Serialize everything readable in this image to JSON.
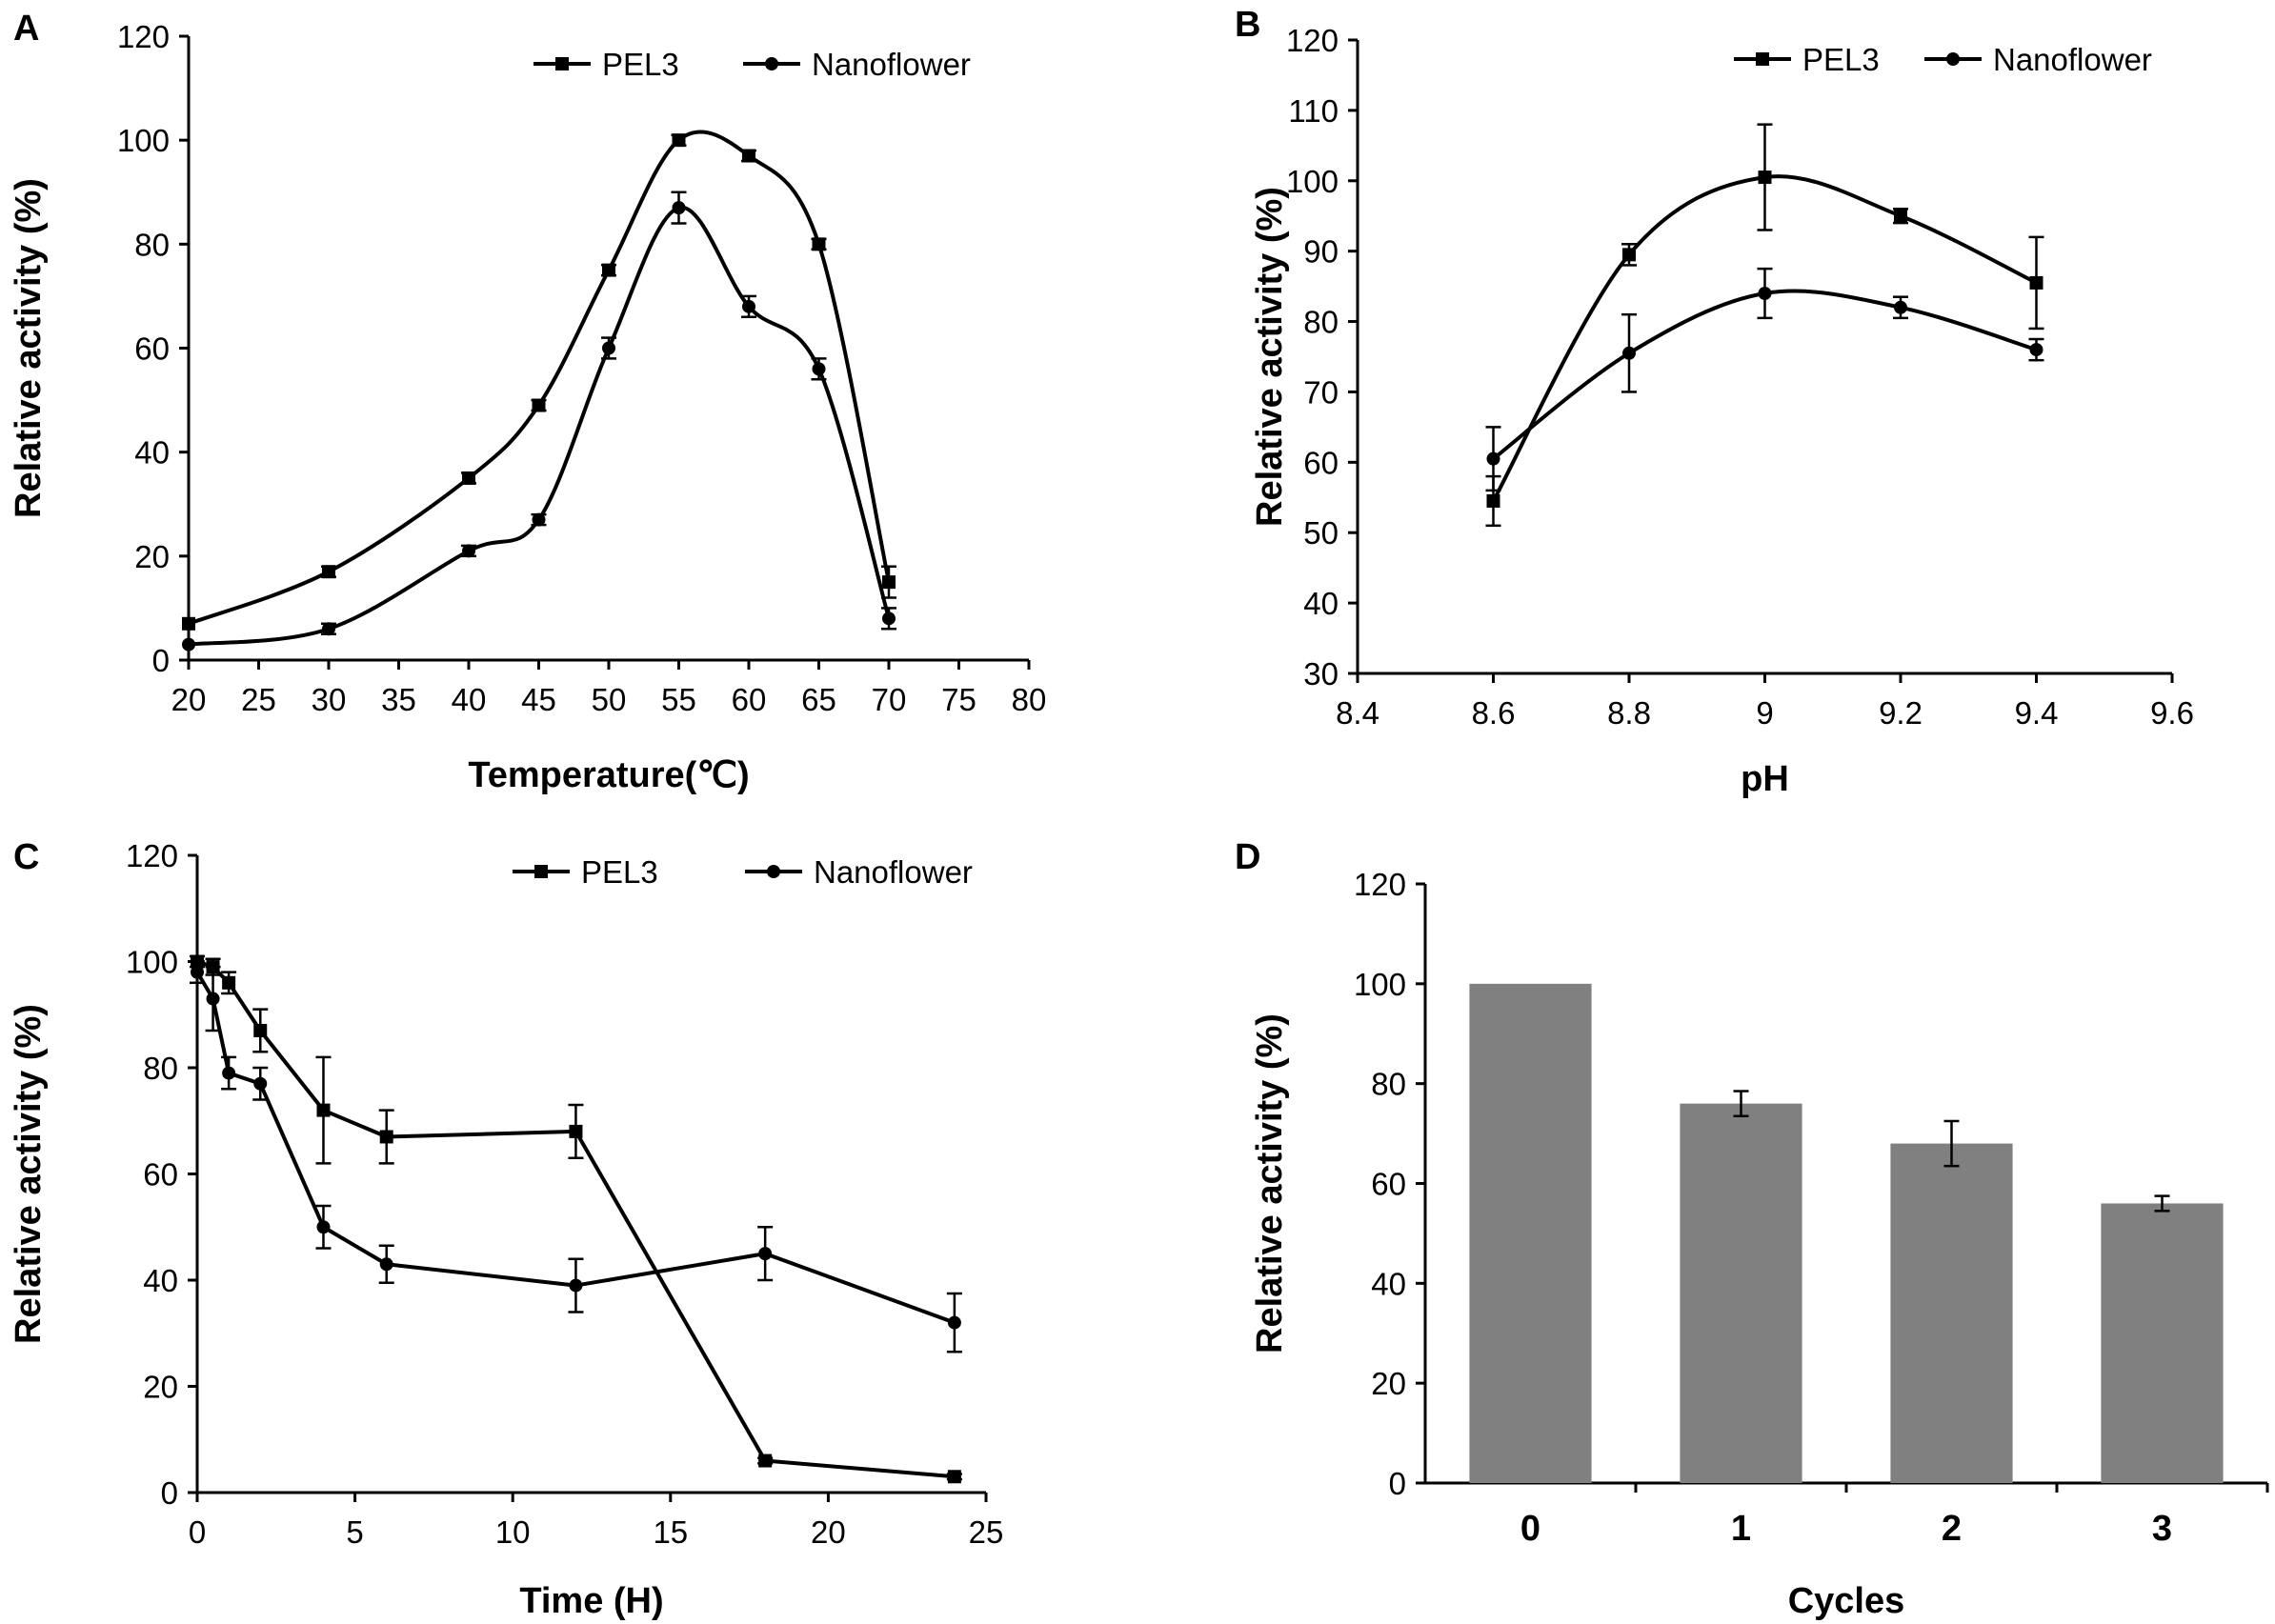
{
  "colors": {
    "ink": "#000000",
    "bar": "#808080",
    "background": "#ffffff"
  },
  "chart_data": [
    {
      "panel": "A",
      "type": "line",
      "xlabel": "Temperature(℃)",
      "ylabel": "Relative activity (%)",
      "xlim": [
        20,
        80
      ],
      "ylim": [
        0,
        120
      ],
      "xticks": [
        "20",
        "25",
        "30",
        "35",
        "40",
        "45",
        "50",
        "55",
        "60",
        "65",
        "70",
        "75",
        "80"
      ],
      "yticks": [
        "0",
        "20",
        "40",
        "60",
        "80",
        "100",
        "120"
      ],
      "x_tick_values": [
        20,
        25,
        30,
        35,
        40,
        45,
        50,
        55,
        60,
        65,
        70,
        75,
        80
      ],
      "y_tick_values": [
        0,
        20,
        40,
        60,
        80,
        100,
        120
      ],
      "legend": "top-right",
      "smooth": true,
      "series": [
        {
          "name": "PEL3",
          "marker": "square",
          "x": [
            20,
            30,
            40,
            45,
            50,
            55,
            60,
            65,
            70
          ],
          "values": [
            7,
            17,
            35,
            49,
            75,
            100,
            97,
            80,
            15
          ],
          "err": [
            0,
            1,
            1,
            1,
            1,
            1,
            1,
            1,
            3
          ]
        },
        {
          "name": "Nanoflower",
          "marker": "circle",
          "x": [
            20,
            30,
            40,
            45,
            50,
            55,
            60,
            65,
            70
          ],
          "values": [
            3,
            6,
            21,
            27,
            60,
            87,
            68,
            56,
            8
          ],
          "err": [
            0,
            1,
            1,
            1,
            2,
            3,
            2,
            2,
            2
          ]
        }
      ]
    },
    {
      "panel": "B",
      "type": "line",
      "xlabel": "pH",
      "ylabel": "Relative activity (%)",
      "xlim": [
        8.4,
        9.6
      ],
      "ylim": [
        30,
        120
      ],
      "xticks": [
        "8.4",
        "8.6",
        "8.8",
        "9",
        "9.2",
        "9.4",
        "9.6"
      ],
      "yticks": [
        "30",
        "40",
        "50",
        "60",
        "70",
        "80",
        "90",
        "100",
        "110",
        "120"
      ],
      "x_tick_values": [
        8.4,
        8.6,
        8.8,
        9.0,
        9.2,
        9.4,
        9.6
      ],
      "y_tick_values": [
        30,
        40,
        50,
        60,
        70,
        80,
        90,
        100,
        110,
        120
      ],
      "legend": "top-right",
      "smooth": true,
      "series": [
        {
          "name": "PEL3",
          "marker": "square",
          "x": [
            8.6,
            8.8,
            9.0,
            9.2,
            9.4
          ],
          "values": [
            54.5,
            89.5,
            100.5,
            95,
            85.5
          ],
          "err": [
            3.5,
            1.5,
            7.5,
            1,
            6.5
          ]
        },
        {
          "name": "Nanoflower",
          "marker": "circle",
          "x": [
            8.6,
            8.8,
            9.0,
            9.2,
            9.4
          ],
          "values": [
            60.5,
            75.5,
            84,
            82,
            76
          ],
          "err": [
            4.5,
            5.5,
            3.5,
            1.5,
            1.5
          ]
        }
      ]
    },
    {
      "panel": "C",
      "type": "line",
      "xlabel": "Time (H)",
      "ylabel": "Relative activity (%)",
      "xlim": [
        0,
        25
      ],
      "ylim": [
        0,
        120
      ],
      "xticks": [
        "0",
        "5",
        "10",
        "15",
        "20",
        "25"
      ],
      "yticks": [
        "0",
        "20",
        "40",
        "60",
        "80",
        "100",
        "120"
      ],
      "x_tick_values": [
        0,
        5,
        10,
        15,
        20,
        25
      ],
      "y_tick_values": [
        0,
        20,
        40,
        60,
        80,
        100,
        120
      ],
      "legend": "top-right",
      "smooth": false,
      "series": [
        {
          "name": "PEL3",
          "marker": "square",
          "x": [
            0,
            0.5,
            1,
            2,
            4,
            6,
            12,
            18,
            24
          ],
          "values": [
            100,
            99,
            96,
            87,
            72,
            67,
            68,
            6,
            3
          ],
          "err": [
            1,
            1.5,
            2,
            4,
            10,
            5,
            5,
            0.5,
            0.5
          ]
        },
        {
          "name": "Nanoflower",
          "marker": "circle",
          "x": [
            0,
            0.5,
            1,
            2,
            4,
            6,
            12,
            18,
            24
          ],
          "values": [
            98,
            93,
            79,
            77,
            50,
            43,
            39,
            45,
            32
          ],
          "err": [
            2,
            6,
            3,
            3,
            4,
            3.5,
            5,
            5,
            5.5
          ]
        }
      ]
    },
    {
      "panel": "D",
      "type": "bar",
      "xlabel": "Cycles",
      "ylabel": "Relative activity (%)",
      "ylim": [
        0,
        120
      ],
      "yticks": [
        "0",
        "20",
        "40",
        "60",
        "80",
        "100",
        "120"
      ],
      "y_tick_values": [
        0,
        20,
        40,
        60,
        80,
        100,
        120
      ],
      "categories": [
        "0",
        "1",
        "2",
        "3"
      ],
      "values": [
        100,
        76,
        68,
        56
      ],
      "err": [
        0,
        2.5,
        4.5,
        1.5
      ]
    }
  ]
}
